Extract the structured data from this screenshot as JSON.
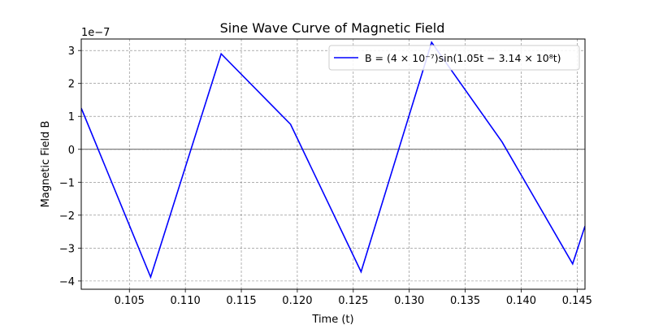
{
  "chart_data": {
    "type": "line",
    "title": "Sine Wave Curve of Magnetic Field",
    "xlabel": "Time (t)",
    "ylabel": "Magnetic Field B",
    "y_offset_label": "1e−7",
    "xlim": [
      0.1007,
      0.1457
    ],
    "ylim": [
      -4.25,
      3.35
    ],
    "x_ticks": [
      0.105,
      0.11,
      0.115,
      0.12,
      0.125,
      0.13,
      0.135,
      0.14,
      0.145
    ],
    "x_tick_labels": [
      "0.105",
      "0.110",
      "0.115",
      "0.120",
      "0.125",
      "0.130",
      "0.135",
      "0.140",
      "0.145"
    ],
    "y_ticks": [
      -4,
      -3,
      -2,
      -1,
      0,
      1,
      2,
      3
    ],
    "y_tick_labels": [
      "−4",
      "−3",
      "−2",
      "−1",
      "0",
      "1",
      "2",
      "3"
    ],
    "grid": true,
    "zero_line": true,
    "legend_position": "upper-right",
    "series": [
      {
        "name": "B = (4 × 10⁻⁷)sin(1.05t − 3.14 × 10⁸t)",
        "color": "#0000ff",
        "x": [
          0.1007,
          0.1069,
          0.1132,
          0.1194,
          0.1257,
          0.132,
          0.1383,
          0.1446,
          0.1457
        ],
        "y": [
          1.25,
          -3.88,
          2.9,
          0.76,
          -3.72,
          3.25,
          0.22,
          -3.48,
          -2.33
        ]
      }
    ]
  }
}
